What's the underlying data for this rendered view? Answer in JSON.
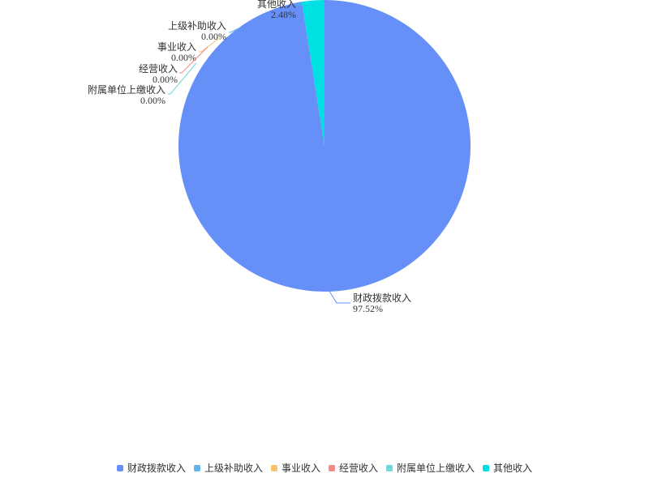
{
  "chart_data": {
    "type": "pie",
    "categories": [
      "财政拨款收入",
      "上级补助收入",
      "事业收入",
      "经营收入",
      "附属单位上缴收入",
      "其他收入"
    ],
    "values": [
      97.52,
      0.0,
      0.0,
      0.0,
      0.0,
      2.48
    ],
    "percent_labels": [
      "97.52%",
      "0.00%",
      "0.00%",
      "0.00%",
      "0.00%",
      "2.48%"
    ],
    "colors": [
      "#6690f8",
      "#63b2ee",
      "#f8c16b",
      "#f08a87",
      "#6ed8d8",
      "#00e0e2"
    ],
    "legend_position": "bottom"
  }
}
